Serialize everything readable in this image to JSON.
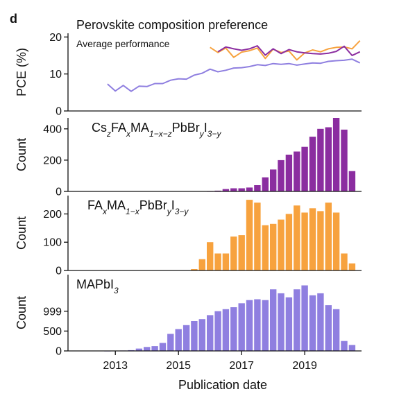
{
  "figure": {
    "panel_letter": "d",
    "xlabel": "Publication date"
  },
  "colors": {
    "purple": "#8b2da0",
    "orange": "#f7a23e",
    "lavender": "#8f7fe0",
    "axis": "#111111"
  },
  "chart_data": [
    {
      "type": "line",
      "title": "Perovskite composition preference",
      "subtitle": "Average performance",
      "ylabel": "PCE (%)",
      "xlim": [
        2011.5,
        2020.8
      ],
      "ylim": [
        0,
        21
      ],
      "yticks": [
        0,
        10,
        20
      ],
      "xticks": [
        2013,
        2015,
        2017,
        2019
      ],
      "series": [
        {
          "color": "#8f7fe0",
          "x": [
            2012.75,
            2013.0,
            2013.25,
            2013.5,
            2013.75,
            2014.0,
            2014.25,
            2014.5,
            2014.75,
            2015.0,
            2015.25,
            2015.5,
            2015.75,
            2016.0,
            2016.25,
            2016.5,
            2016.75,
            2017.0,
            2017.25,
            2017.5,
            2017.75,
            2018.0,
            2018.25,
            2018.5,
            2018.75,
            2019.0,
            2019.25,
            2019.5,
            2019.75,
            2020.0,
            2020.25,
            2020.5,
            2020.75
          ],
          "y": [
            7.3,
            5.4,
            6.9,
            5.3,
            6.7,
            6.6,
            7.4,
            7.4,
            8.3,
            8.7,
            8.6,
            9.7,
            10.2,
            11.3,
            10.6,
            11.0,
            11.6,
            11.7,
            12.0,
            12.5,
            12.3,
            12.8,
            12.6,
            12.8,
            12.4,
            12.7,
            13.0,
            12.9,
            13.4,
            13.6,
            13.7,
            14.0,
            13.0
          ]
        },
        {
          "color": "#f7a23e",
          "x": [
            2016.0,
            2016.25,
            2016.5,
            2016.75,
            2017.0,
            2017.25,
            2017.5,
            2017.75,
            2018.0,
            2018.25,
            2018.5,
            2018.75,
            2019.0,
            2019.25,
            2019.5,
            2019.75,
            2020.0,
            2020.25,
            2020.5,
            2020.75
          ],
          "y": [
            17.2,
            15.8,
            17.0,
            14.5,
            15.9,
            16.3,
            17.0,
            14.2,
            16.7,
            15.8,
            16.2,
            13.8,
            15.7,
            16.5,
            16.0,
            16.8,
            17.2,
            17.3,
            16.8,
            19.0
          ]
        },
        {
          "color": "#8b2da0",
          "x": [
            2016.25,
            2016.5,
            2016.75,
            2017.0,
            2017.25,
            2017.5,
            2017.75,
            2018.0,
            2018.25,
            2018.5,
            2018.75,
            2019.0,
            2019.25,
            2019.5,
            2019.75,
            2020.0,
            2020.25,
            2020.5,
            2020.75
          ],
          "y": [
            16.0,
            17.3,
            16.8,
            16.4,
            16.8,
            17.6,
            15.1,
            16.8,
            15.5,
            16.6,
            16.0,
            15.7,
            15.5,
            15.4,
            15.6,
            16.1,
            17.5,
            15.0,
            16.0
          ]
        }
      ]
    },
    {
      "type": "bar",
      "label_parts": [
        {
          "t": "Cs",
          "s": "n"
        },
        {
          "t": "z",
          "s": "sub"
        },
        {
          "t": "FA",
          "s": "n"
        },
        {
          "t": "x",
          "s": "sub"
        },
        {
          "t": "MA",
          "s": "n"
        },
        {
          "t": "1−x−z",
          "s": "sub"
        },
        {
          "t": "PbBr",
          "s": "n"
        },
        {
          "t": "y",
          "s": "sub"
        },
        {
          "t": "I",
          "s": "n"
        },
        {
          "t": "3−y",
          "s": "sub"
        }
      ],
      "ylabel": "Count",
      "color": "#8b2da0",
      "ylim": [
        0,
        470
      ],
      "yticks": [
        0,
        200,
        400
      ],
      "x": [
        2016.0,
        2016.25,
        2016.5,
        2016.75,
        2017.0,
        2017.25,
        2017.5,
        2017.75,
        2018.0,
        2018.25,
        2018.5,
        2018.75,
        2019.0,
        2019.25,
        2019.5,
        2019.75,
        2020.0,
        2020.25,
        2020.5
      ],
      "values": [
        1,
        5,
        15,
        20,
        20,
        25,
        40,
        90,
        140,
        200,
        235,
        255,
        285,
        350,
        400,
        410,
        480,
        395,
        130
      ]
    },
    {
      "type": "bar",
      "label_parts": [
        {
          "t": "FA",
          "s": "n"
        },
        {
          "t": "x",
          "s": "sub"
        },
        {
          "t": "MA",
          "s": "n"
        },
        {
          "t": "1−x",
          "s": "sub"
        },
        {
          "t": "PbBr",
          "s": "n"
        },
        {
          "t": "y",
          "s": "sub"
        },
        {
          "t": "I",
          "s": "n"
        },
        {
          "t": "3−y",
          "s": "sub"
        }
      ],
      "ylabel": "Count",
      "color": "#f7a23e",
      "ylim": [
        0,
        265
      ],
      "yticks": [
        0,
        100,
        200
      ],
      "x": [
        2015.0,
        2015.25,
        2015.5,
        2015.75,
        2016.0,
        2016.25,
        2016.5,
        2016.75,
        2017.0,
        2017.25,
        2017.5,
        2017.75,
        2018.0,
        2018.25,
        2018.5,
        2018.75,
        2019.0,
        2019.25,
        2019.5,
        2019.75,
        2020.0,
        2020.25,
        2020.5
      ],
      "values": [
        1,
        1,
        5,
        40,
        100,
        60,
        60,
        120,
        125,
        250,
        240,
        160,
        165,
        180,
        200,
        230,
        205,
        220,
        210,
        240,
        205,
        60,
        25
      ]
    },
    {
      "type": "bar",
      "label_parts": [
        {
          "t": "MAPbI",
          "s": "n"
        },
        {
          "t": "3",
          "s": "sub"
        }
      ],
      "ylabel": "Count",
      "color": "#8f7fe0",
      "ylim": [
        0,
        1920
      ],
      "yticks": [
        0,
        500,
        999
      ],
      "x": [
        2012.75,
        2013.0,
        2013.25,
        2013.5,
        2013.75,
        2014.0,
        2014.25,
        2014.5,
        2014.75,
        2015.0,
        2015.25,
        2015.5,
        2015.75,
        2016.0,
        2016.25,
        2016.5,
        2016.75,
        2017.0,
        2017.25,
        2017.5,
        2017.75,
        2018.0,
        2018.25,
        2018.5,
        2018.75,
        2019.0,
        2019.25,
        2019.5,
        2019.75,
        2020.0,
        2020.25,
        2020.5
      ],
      "values": [
        1,
        5,
        10,
        20,
        60,
        100,
        120,
        200,
        430,
        550,
        650,
        750,
        800,
        900,
        1000,
        1050,
        1100,
        1200,
        1280,
        1300,
        1280,
        1550,
        1450,
        1350,
        1550,
        1650,
        1400,
        1450,
        1150,
        1050,
        250,
        150
      ]
    }
  ]
}
